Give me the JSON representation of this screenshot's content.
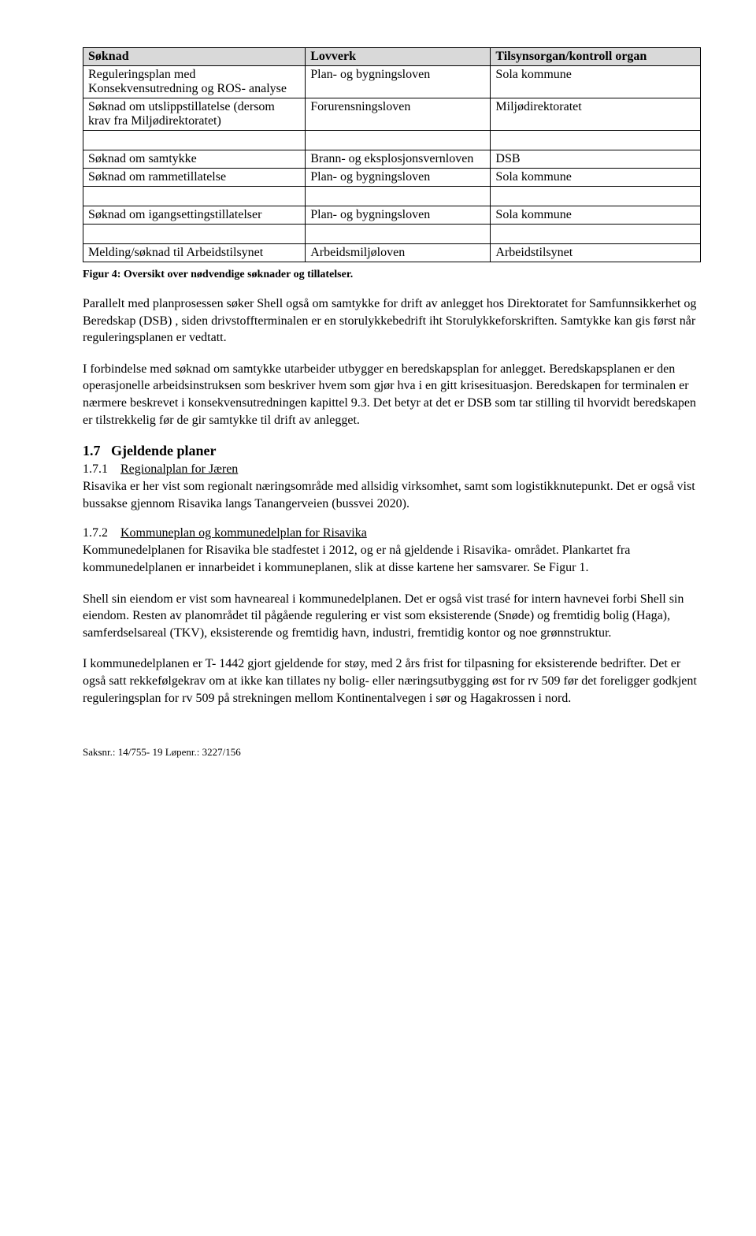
{
  "table": {
    "headers": [
      "Søknad",
      "Lovverk",
      "Tilsynsorgan/kontroll organ"
    ],
    "rows": [
      [
        "Reguleringsplan med Konsekvensutredning og ROS- analyse",
        "Plan- og bygningsloven",
        "Sola kommune"
      ],
      [
        "Søknad om utslippstillatelse (dersom krav fra Miljødirektoratet)",
        "Forurensningsloven",
        "Miljødirektoratet"
      ],
      [
        "",
        "",
        ""
      ],
      [
        "Søknad om samtykke",
        "Brann- og eksplosjonsvernloven",
        "DSB"
      ],
      [
        "Søknad om rammetillatelse",
        "Plan- og bygningsloven",
        "Sola kommune"
      ],
      [
        "",
        "",
        ""
      ],
      [
        "Søknad om igangsettingstillatelser",
        "Plan- og bygningsloven",
        "Sola kommune"
      ],
      [
        "",
        "",
        ""
      ],
      [
        "Melding/søknad til Arbeidstilsynet",
        "Arbeidsmiljøloven",
        "Arbeidstilsynet"
      ]
    ]
  },
  "caption": "Figur 4: Oversikt over nødvendige søknader og tillatelser.",
  "p1": "Parallelt med planprosessen søker Shell også om samtykke for drift av anlegget hos Direktoratet for Samfunnsikkerhet og Beredskap (DSB) , siden drivstoffterminalen er en storulykkebedrift iht Storulykkeforskriften. Samtykke kan gis først når reguleringsplanen er vedtatt.",
  "p2": "I forbindelse med søknad om samtykke utarbeider utbygger en beredskapsplan for anlegget. Beredskapsplanen er den operasjonelle arbeidsinstruksen som beskriver hvem som gjør hva i en gitt krisesituasjon. Beredskapen for terminalen er nærmere beskrevet i konsekvensutredningen kapittel 9.3. Det betyr at det er DSB som tar stilling til hvorvidt beredskapen er tilstrekkelig før de gir samtykke til drift av anlegget.",
  "sec17": {
    "num": "1.7",
    "title": "Gjeldende planer"
  },
  "sub171": {
    "num": "1.7.1",
    "title": "Regionalplan for Jæren",
    "body": "Risavika er her vist som regionalt næringsområde med allsidig virksomhet, samt som logistikknutepunkt. Det er også vist bussakse gjennom Risavika langs Tanangerveien (bussvei 2020)."
  },
  "sub172": {
    "num": "1.7.2",
    "title": "Kommuneplan og kommunedelplan for Risavika",
    "body1": "Kommunedelplanen for Risavika ble stadfestet i 2012, og er nå gjeldende i Risavika- området. Plankartet fra kommunedelplanen er innarbeidet i kommuneplanen, slik at disse kartene her samsvarer. Se Figur 1.",
    "body2": "Shell sin eiendom er vist som havneareal i kommunedelplanen. Det er også vist trasé for intern havnevei forbi Shell sin eiendom. Resten av planområdet til pågående regulering er vist som eksisterende (Snøde) og fremtidig bolig (Haga), samferdselsareal (TKV), eksisterende og fremtidig havn, industri, fremtidig kontor og noe grønnstruktur.",
    "body3": "I kommunedelplanen er T- 1442 gjort gjeldende for støy, med 2 års frist for tilpasning for eksisterende bedrifter. Det er også satt rekkefølgekrav om at ikke kan tillates ny bolig- eller næringsutbygging øst for rv 509 før det foreligger godkjent reguleringsplan for rv 509 på strekningen mellom Kontinentalvegen i sør og Hagakrossen i nord."
  },
  "footer": "Saksnr.: 14/755- 19 Løpenr.: 3227/156"
}
